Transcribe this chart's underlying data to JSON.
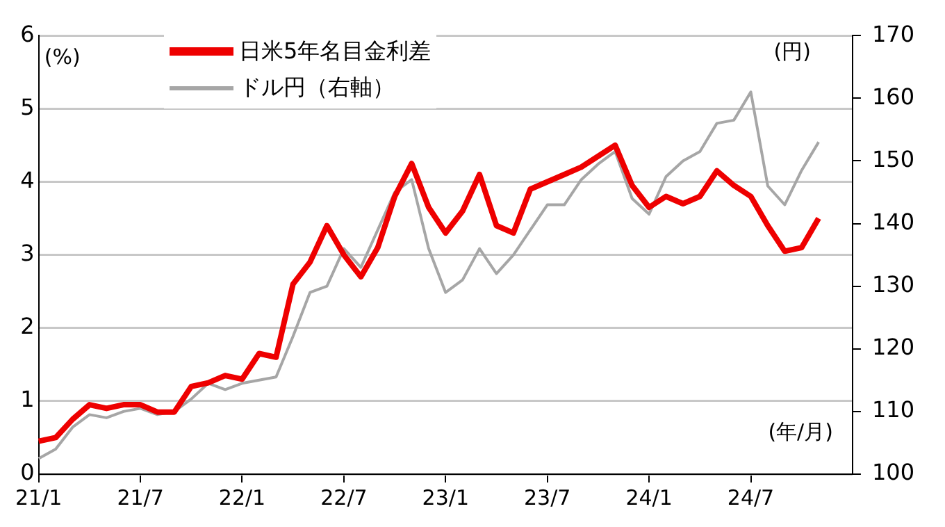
{
  "chart_data": {
    "type": "line",
    "ylabel": "(%)",
    "y2label": "(円)",
    "xlabel": "(年/月)",
    "legend": "top left",
    "grid": "y",
    "line_style": "solid",
    "marker": "none",
    "categories": [
      "21/1",
      null,
      null,
      null,
      null,
      null,
      "21/7",
      null,
      null,
      null,
      null,
      null,
      "22/1",
      null,
      null,
      null,
      null,
      null,
      "22/7",
      null,
      null,
      null,
      null,
      null,
      "23/1",
      null,
      null,
      null,
      null,
      null,
      "23/7",
      null,
      null,
      null,
      null,
      null,
      "24/1",
      null,
      null,
      null,
      null,
      null,
      "24/7",
      null,
      null,
      null,
      null,
      null,
      null
    ],
    "ylim": [
      0,
      6
    ],
    "yticks": [
      0,
      1,
      2,
      3,
      4,
      5,
      6
    ],
    "y2lim": [
      100,
      170
    ],
    "y2ticks": [
      100,
      110,
      120,
      130,
      140,
      150,
      160,
      170
    ],
    "series": [
      {
        "name": "日米5年名目金利差",
        "color": "#ee0000",
        "values": [
          0.45,
          0.5,
          0.75,
          0.95,
          0.9,
          0.95,
          0.95,
          0.85,
          0.85,
          1.2,
          1.25,
          1.35,
          1.3,
          1.65,
          1.6,
          2.6,
          2.9,
          3.4,
          3.0,
          2.7,
          3.1,
          3.8,
          4.25,
          3.65,
          3.3,
          3.6,
          4.1,
          3.4,
          3.3,
          3.9,
          4.0,
          4.1,
          4.2,
          4.35,
          4.5,
          3.95,
          3.65,
          3.8,
          3.7,
          3.8,
          4.15,
          3.95,
          3.8,
          3.4,
          3.05,
          3.1,
          3.5,
          null,
          null
        ]
      },
      {
        "name": "ドル円（右軸）",
        "color": "#a6a6a6",
        "axis": "y2",
        "values": [
          102.5,
          104,
          107.5,
          109.5,
          109,
          110,
          110.5,
          109.5,
          110,
          112,
          114.5,
          113.5,
          114.5,
          115,
          115.5,
          122,
          129,
          130,
          136,
          133,
          139,
          145,
          147,
          136,
          129,
          131,
          136,
          132,
          135,
          139,
          143,
          143,
          147,
          149.5,
          151.5,
          144,
          141.5,
          147.5,
          150,
          151.5,
          156,
          156.5,
          161,
          146,
          143,
          148.5,
          153,
          null,
          null
        ]
      }
    ]
  }
}
